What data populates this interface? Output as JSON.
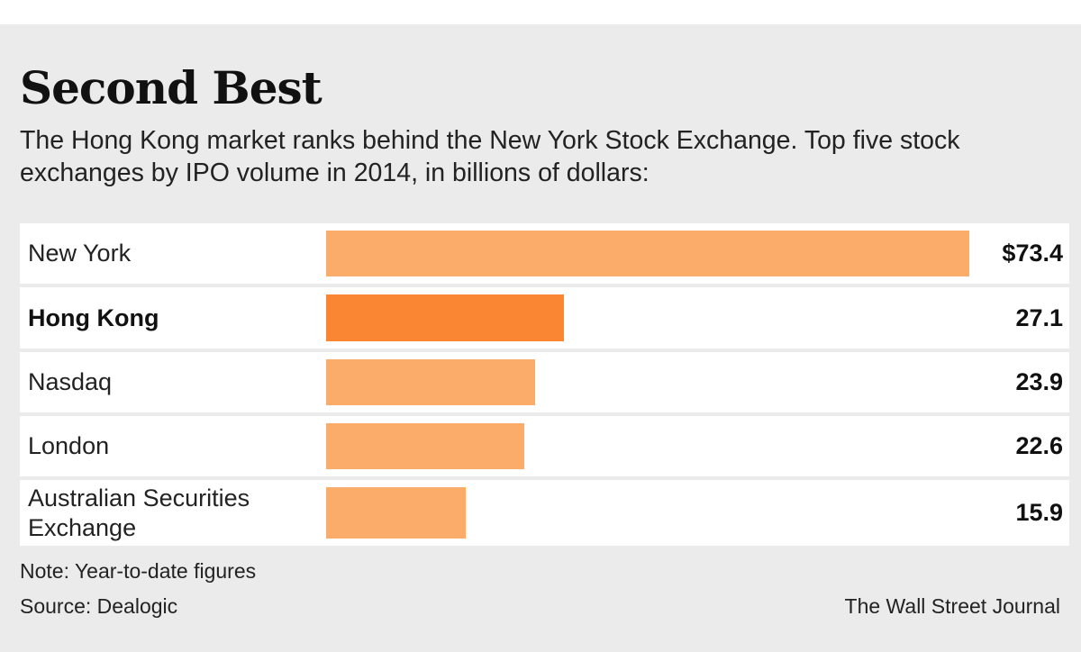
{
  "chart_data": {
    "type": "bar",
    "orientation": "horizontal",
    "title": "Second Best",
    "subtitle": "The Hong Kong market ranks behind the New York Stock Exchange. Top five stock exchanges by IPO volume in 2014, in billions of dollars:",
    "categories": [
      "New York",
      "Hong Kong",
      "Nasdaq",
      "London",
      "Australian Securities Exchange"
    ],
    "values": [
      73.4,
      27.1,
      23.9,
      22.6,
      15.9
    ],
    "value_labels": [
      "$73.4",
      "27.1",
      "23.9",
      "22.6",
      "15.9"
    ],
    "highlight": "Hong Kong",
    "xlim": [
      0,
      73.4
    ],
    "xlabel": "",
    "ylabel": "",
    "grid": false,
    "colors": {
      "bar": "#fbab6a",
      "highlight": "#fa8633"
    }
  },
  "footer": {
    "note": "Note: Year-to-date figures",
    "source": "Source: Dealogic",
    "credit": "The Wall Street Journal"
  }
}
